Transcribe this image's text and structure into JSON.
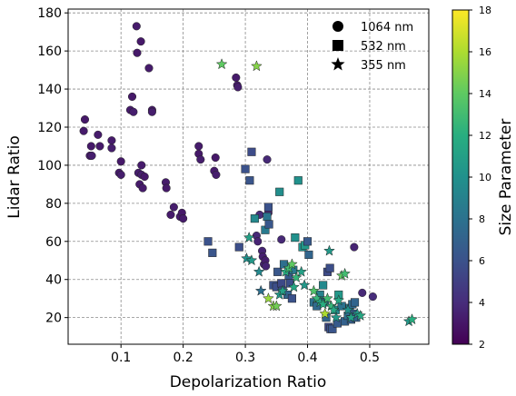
{
  "chart_data": {
    "type": "scatter",
    "title": "",
    "xlabel": "Depolarization Ratio",
    "ylabel": "Lidar Ratio",
    "xlim": [
      0.015,
      0.595
    ],
    "ylim": [
      6,
      182
    ],
    "xticks": [
      0.1,
      0.2,
      0.3,
      0.4,
      0.5
    ],
    "yticks": [
      20,
      40,
      60,
      80,
      100,
      120,
      140,
      160,
      180
    ],
    "grid": true,
    "legend_position": "top-right",
    "colorbar": {
      "label": "Size Parameter",
      "min": 2,
      "max": 18,
      "ticks": [
        2,
        4,
        6,
        8,
        10,
        12,
        14,
        16,
        18
      ],
      "colormap": "viridis"
    },
    "series": [
      {
        "name": "1064 nm",
        "marker": "circle",
        "points": [
          {
            "x": 0.04,
            "y": 118,
            "c": 3.2
          },
          {
            "x": 0.042,
            "y": 124,
            "c": 3.1
          },
          {
            "x": 0.05,
            "y": 105,
            "c": 3.2
          },
          {
            "x": 0.052,
            "y": 110,
            "c": 3.1
          },
          {
            "x": 0.053,
            "y": 105,
            "c": 3.3
          },
          {
            "x": 0.063,
            "y": 116,
            "c": 3.2
          },
          {
            "x": 0.066,
            "y": 110,
            "c": 3.1
          },
          {
            "x": 0.085,
            "y": 113,
            "c": 3.2
          },
          {
            "x": 0.085,
            "y": 109,
            "c": 3.3
          },
          {
            "x": 0.097,
            "y": 96,
            "c": 3.2
          },
          {
            "x": 0.1,
            "y": 102,
            "c": 3.1
          },
          {
            "x": 0.1,
            "y": 95,
            "c": 3.3
          },
          {
            "x": 0.115,
            "y": 129,
            "c": 3.2
          },
          {
            "x": 0.118,
            "y": 136,
            "c": 3.1
          },
          {
            "x": 0.12,
            "y": 128,
            "c": 3.3
          },
          {
            "x": 0.125,
            "y": 173,
            "c": 3.2
          },
          {
            "x": 0.126,
            "y": 159,
            "c": 3.1
          },
          {
            "x": 0.128,
            "y": 96,
            "c": 3.3
          },
          {
            "x": 0.13,
            "y": 90,
            "c": 3.2
          },
          {
            "x": 0.132,
            "y": 165,
            "c": 3.1
          },
          {
            "x": 0.133,
            "y": 100,
            "c": 3.2
          },
          {
            "x": 0.133,
            "y": 95,
            "c": 3.3
          },
          {
            "x": 0.135,
            "y": 88,
            "c": 3.2
          },
          {
            "x": 0.138,
            "y": 94,
            "c": 3.1
          },
          {
            "x": 0.145,
            "y": 151,
            "c": 3.2
          },
          {
            "x": 0.15,
            "y": 129,
            "c": 3.1
          },
          {
            "x": 0.15,
            "y": 128,
            "c": 3.3
          },
          {
            "x": 0.172,
            "y": 91,
            "c": 3.2
          },
          {
            "x": 0.173,
            "y": 88,
            "c": 3.1
          },
          {
            "x": 0.18,
            "y": 74,
            "c": 3.2
          },
          {
            "x": 0.185,
            "y": 78,
            "c": 3.3
          },
          {
            "x": 0.195,
            "y": 73,
            "c": 3.2
          },
          {
            "x": 0.198,
            "y": 75,
            "c": 3.1
          },
          {
            "x": 0.2,
            "y": 72,
            "c": 3.2
          },
          {
            "x": 0.225,
            "y": 110,
            "c": 3.2
          },
          {
            "x": 0.225,
            "y": 106,
            "c": 3.1
          },
          {
            "x": 0.228,
            "y": 103,
            "c": 3.3
          },
          {
            "x": 0.25,
            "y": 97,
            "c": 3.2
          },
          {
            "x": 0.252,
            "y": 104,
            "c": 3.1
          },
          {
            "x": 0.253,
            "y": 95,
            "c": 3.3
          },
          {
            "x": 0.285,
            "y": 146,
            "c": 3.2
          },
          {
            "x": 0.287,
            "y": 142,
            "c": 3.1
          },
          {
            "x": 0.288,
            "y": 141,
            "c": 3.3
          },
          {
            "x": 0.318,
            "y": 63,
            "c": 3.8
          },
          {
            "x": 0.32,
            "y": 60,
            "c": 3.6
          },
          {
            "x": 0.323,
            "y": 74,
            "c": 4.0
          },
          {
            "x": 0.327,
            "y": 55,
            "c": 3.6
          },
          {
            "x": 0.328,
            "y": 52,
            "c": 3.4
          },
          {
            "x": 0.33,
            "y": 48,
            "c": 3.5
          },
          {
            "x": 0.332,
            "y": 50,
            "c": 3.3
          },
          {
            "x": 0.333,
            "y": 47,
            "c": 3.6
          },
          {
            "x": 0.335,
            "y": 103,
            "c": 3.8
          },
          {
            "x": 0.337,
            "y": 75,
            "c": 3.8
          },
          {
            "x": 0.358,
            "y": 61,
            "c": 3.8
          },
          {
            "x": 0.475,
            "y": 57,
            "c": 3.6
          },
          {
            "x": 0.488,
            "y": 33,
            "c": 3.8
          },
          {
            "x": 0.505,
            "y": 31,
            "c": 4.0
          }
        ]
      },
      {
        "name": "532 nm",
        "marker": "square",
        "points": [
          {
            "x": 0.24,
            "y": 60,
            "c": 6.0
          },
          {
            "x": 0.247,
            "y": 54,
            "c": 6.2
          },
          {
            "x": 0.29,
            "y": 57,
            "c": 5.8
          },
          {
            "x": 0.3,
            "y": 98,
            "c": 6.0
          },
          {
            "x": 0.307,
            "y": 92,
            "c": 6.2
          },
          {
            "x": 0.31,
            "y": 107,
            "c": 5.7
          },
          {
            "x": 0.315,
            "y": 72,
            "c": 9.5
          },
          {
            "x": 0.332,
            "y": 66,
            "c": 8.5
          },
          {
            "x": 0.335,
            "y": 73,
            "c": 8.2
          },
          {
            "x": 0.337,
            "y": 78,
            "c": 6.0
          },
          {
            "x": 0.338,
            "y": 69,
            "c": 6.3
          },
          {
            "x": 0.345,
            "y": 37,
            "c": 6.0
          },
          {
            "x": 0.35,
            "y": 36,
            "c": 5.8
          },
          {
            "x": 0.352,
            "y": 44,
            "c": 6.3
          },
          {
            "x": 0.355,
            "y": 86,
            "c": 9.8
          },
          {
            "x": 0.358,
            "y": 38,
            "c": 5.5
          },
          {
            "x": 0.36,
            "y": 34,
            "c": 6.2
          },
          {
            "x": 0.362,
            "y": 48,
            "c": 7.8
          },
          {
            "x": 0.368,
            "y": 32,
            "c": 7.2
          },
          {
            "x": 0.37,
            "y": 42,
            "c": 6.5
          },
          {
            "x": 0.372,
            "y": 38,
            "c": 5.8
          },
          {
            "x": 0.375,
            "y": 30,
            "c": 6.0
          },
          {
            "x": 0.377,
            "y": 45,
            "c": 8.5
          },
          {
            "x": 0.38,
            "y": 62,
            "c": 10.0
          },
          {
            "x": 0.385,
            "y": 92,
            "c": 10.0
          },
          {
            "x": 0.392,
            "y": 57,
            "c": 10.0
          },
          {
            "x": 0.396,
            "y": 58,
            "c": 10.5
          },
          {
            "x": 0.4,
            "y": 60,
            "c": 6.5
          },
          {
            "x": 0.402,
            "y": 53,
            "c": 7.2
          },
          {
            "x": 0.41,
            "y": 28,
            "c": 8.0
          },
          {
            "x": 0.415,
            "y": 26,
            "c": 7.5
          },
          {
            "x": 0.42,
            "y": 32,
            "c": 9.0
          },
          {
            "x": 0.425,
            "y": 37,
            "c": 9.5
          },
          {
            "x": 0.428,
            "y": 28,
            "c": 8.5
          },
          {
            "x": 0.43,
            "y": 20,
            "c": 7.2
          },
          {
            "x": 0.432,
            "y": 44,
            "c": 5.6
          },
          {
            "x": 0.434,
            "y": 15,
            "c": 5.5
          },
          {
            "x": 0.436,
            "y": 46,
            "c": 5.8
          },
          {
            "x": 0.437,
            "y": 14,
            "c": 6.0
          },
          {
            "x": 0.44,
            "y": 14,
            "c": 6.2
          },
          {
            "x": 0.445,
            "y": 24,
            "c": 9.5
          },
          {
            "x": 0.448,
            "y": 17,
            "c": 6.5
          },
          {
            "x": 0.45,
            "y": 32,
            "c": 10.5
          },
          {
            "x": 0.455,
            "y": 26,
            "c": 8.0
          },
          {
            "x": 0.46,
            "y": 18,
            "c": 7.0
          },
          {
            "x": 0.465,
            "y": 21,
            "c": 7.8
          },
          {
            "x": 0.468,
            "y": 25,
            "c": 8.5
          },
          {
            "x": 0.47,
            "y": 19,
            "c": 6.8
          },
          {
            "x": 0.472,
            "y": 27,
            "c": 7.5
          },
          {
            "x": 0.474,
            "y": 22,
            "c": 6.8
          },
          {
            "x": 0.476,
            "y": 28,
            "c": 7.2
          },
          {
            "x": 0.478,
            "y": 20,
            "c": 7.0
          }
        ]
      },
      {
        "name": "355 nm",
        "marker": "star",
        "points": [
          {
            "x": 0.262,
            "y": 153,
            "c": 14.0
          },
          {
            "x": 0.302,
            "y": 51,
            "c": 10.0
          },
          {
            "x": 0.306,
            "y": 62,
            "c": 11.0
          },
          {
            "x": 0.31,
            "y": 50,
            "c": 10.5
          },
          {
            "x": 0.318,
            "y": 152,
            "c": 15.0
          },
          {
            "x": 0.322,
            "y": 44,
            "c": 9.5
          },
          {
            "x": 0.325,
            "y": 34,
            "c": 7.8
          },
          {
            "x": 0.337,
            "y": 30,
            "c": 15.5
          },
          {
            "x": 0.345,
            "y": 26,
            "c": 15.0
          },
          {
            "x": 0.35,
            "y": 26,
            "c": 14.5
          },
          {
            "x": 0.355,
            "y": 32,
            "c": 10.5
          },
          {
            "x": 0.36,
            "y": 34,
            "c": 11.0
          },
          {
            "x": 0.365,
            "y": 44,
            "c": 12.0
          },
          {
            "x": 0.37,
            "y": 46,
            "c": 13.0
          },
          {
            "x": 0.375,
            "y": 48,
            "c": 14.0
          },
          {
            "x": 0.378,
            "y": 36,
            "c": 11.5
          },
          {
            "x": 0.382,
            "y": 41,
            "c": 12.5
          },
          {
            "x": 0.39,
            "y": 44,
            "c": 11.0
          },
          {
            "x": 0.395,
            "y": 37,
            "c": 10.5
          },
          {
            "x": 0.41,
            "y": 34,
            "c": 13.5
          },
          {
            "x": 0.415,
            "y": 30,
            "c": 12.5
          },
          {
            "x": 0.42,
            "y": 28,
            "c": 11.5
          },
          {
            "x": 0.425,
            "y": 27,
            "c": 12.0
          },
          {
            "x": 0.428,
            "y": 22,
            "c": 16.0
          },
          {
            "x": 0.432,
            "y": 30,
            "c": 13.0
          },
          {
            "x": 0.435,
            "y": 55,
            "c": 10.5
          },
          {
            "x": 0.438,
            "y": 26,
            "c": 12.5
          },
          {
            "x": 0.442,
            "y": 24,
            "c": 11.5
          },
          {
            "x": 0.446,
            "y": 20,
            "c": 10.5
          },
          {
            "x": 0.45,
            "y": 29,
            "c": 11.5
          },
          {
            "x": 0.455,
            "y": 42,
            "c": 14.0
          },
          {
            "x": 0.46,
            "y": 43,
            "c": 13.0
          },
          {
            "x": 0.465,
            "y": 24,
            "c": 10.0
          },
          {
            "x": 0.47,
            "y": 20,
            "c": 11.0
          },
          {
            "x": 0.48,
            "y": 22,
            "c": 10.5
          },
          {
            "x": 0.485,
            "y": 21,
            "c": 11.5
          },
          {
            "x": 0.563,
            "y": 18,
            "c": 10.5
          },
          {
            "x": 0.568,
            "y": 19,
            "c": 12.0
          }
        ]
      }
    ]
  }
}
